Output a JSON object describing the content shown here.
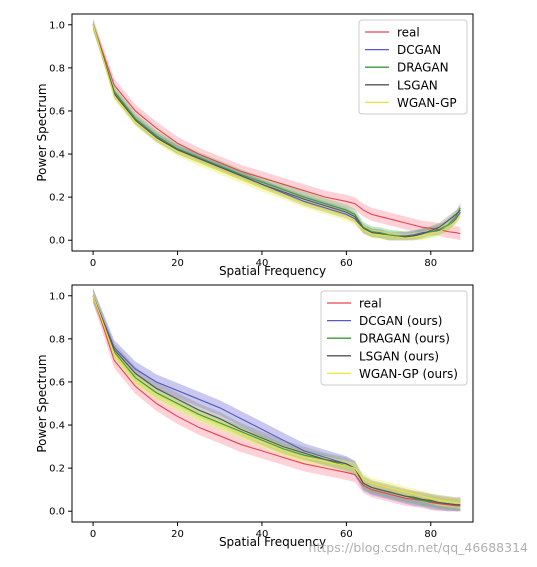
{
  "watermark": "https://blog.csdn.net/qq_46688314",
  "chart_data": [
    {
      "type": "line",
      "xlabel": "Spatial Frequency",
      "ylabel": "Power Spectrum",
      "xlim": [
        -5,
        90
      ],
      "ylim": [
        -0.05,
        1.05
      ],
      "xticks": [
        0,
        20,
        40,
        60,
        80
      ],
      "yticks": [
        0.0,
        0.2,
        0.4,
        0.6,
        0.8,
        1.0
      ],
      "legend_position": "top-right",
      "grid": false,
      "x": [
        0,
        5,
        10,
        15,
        20,
        25,
        30,
        35,
        40,
        45,
        50,
        55,
        60,
        62,
        64,
        66,
        68,
        70,
        72,
        74,
        76,
        78,
        80,
        82,
        84,
        86,
        87
      ],
      "series": [
        {
          "name": "real",
          "color": "#e8444c",
          "band_color": "#ff9aa8",
          "band": 0.03,
          "values": [
            1.0,
            0.72,
            0.6,
            0.52,
            0.45,
            0.4,
            0.36,
            0.32,
            0.29,
            0.26,
            0.23,
            0.2,
            0.18,
            0.17,
            0.14,
            0.12,
            0.11,
            0.1,
            0.09,
            0.08,
            0.07,
            0.06,
            0.055,
            0.05,
            0.04,
            0.035,
            0.03
          ]
        },
        {
          "name": "DCGAN",
          "color": "#5a58c2",
          "band_color": "#8888dd",
          "band": 0.02,
          "values": [
            1.0,
            0.68,
            0.56,
            0.48,
            0.42,
            0.38,
            0.34,
            0.3,
            0.26,
            0.22,
            0.18,
            0.15,
            0.12,
            0.1,
            0.05,
            0.035,
            0.03,
            0.02,
            0.02,
            0.02,
            0.025,
            0.035,
            0.04,
            0.045,
            0.06,
            0.1,
            0.13
          ]
        },
        {
          "name": "DRAGAN",
          "color": "#3c9a3c",
          "band_color": "#7acc7a",
          "band": 0.025,
          "values": [
            1.0,
            0.69,
            0.565,
            0.485,
            0.425,
            0.385,
            0.345,
            0.305,
            0.27,
            0.235,
            0.2,
            0.17,
            0.14,
            0.12,
            0.06,
            0.04,
            0.035,
            0.025,
            0.02,
            0.015,
            0.02,
            0.03,
            0.04,
            0.05,
            0.07,
            0.11,
            0.15
          ]
        },
        {
          "name": "LSGAN",
          "color": "#555555",
          "band_color": "#999999",
          "band": 0.02,
          "values": [
            1.0,
            0.68,
            0.555,
            0.475,
            0.42,
            0.38,
            0.34,
            0.3,
            0.26,
            0.225,
            0.19,
            0.16,
            0.13,
            0.11,
            0.055,
            0.035,
            0.03,
            0.02,
            0.015,
            0.015,
            0.02,
            0.03,
            0.045,
            0.06,
            0.09,
            0.12,
            0.14
          ]
        },
        {
          "name": "WGAN-GP",
          "color": "#e6e63c",
          "band_color": "#f2f270",
          "band": 0.02,
          "values": [
            1.0,
            0.67,
            0.55,
            0.47,
            0.41,
            0.365,
            0.325,
            0.285,
            0.245,
            0.21,
            0.17,
            0.14,
            0.11,
            0.09,
            0.05,
            0.03,
            0.025,
            0.02,
            0.015,
            0.01,
            0.015,
            0.02,
            0.03,
            0.04,
            0.06,
            0.09,
            0.12
          ]
        }
      ]
    },
    {
      "type": "line",
      "xlabel": "Spatial Frequency",
      "ylabel": "Power Spectrum",
      "xlim": [
        -5,
        90
      ],
      "ylim": [
        -0.05,
        1.05
      ],
      "xticks": [
        0,
        20,
        40,
        60,
        80
      ],
      "yticks": [
        0.0,
        0.2,
        0.4,
        0.6,
        0.8,
        1.0
      ],
      "legend_position": "top-right",
      "grid": false,
      "x": [
        0,
        5,
        10,
        15,
        20,
        25,
        30,
        35,
        40,
        45,
        50,
        55,
        60,
        62,
        64,
        66,
        68,
        70,
        72,
        74,
        76,
        78,
        80,
        82,
        84,
        86,
        87
      ],
      "series": [
        {
          "name": "real",
          "color": "#e8444c",
          "band_color": "#ff9aa8",
          "band": 0.035,
          "values": [
            1.0,
            0.7,
            0.58,
            0.5,
            0.44,
            0.39,
            0.35,
            0.31,
            0.28,
            0.25,
            0.22,
            0.2,
            0.18,
            0.17,
            0.12,
            0.1,
            0.09,
            0.08,
            0.07,
            0.06,
            0.055,
            0.05,
            0.04,
            0.035,
            0.03,
            0.025,
            0.025
          ]
        },
        {
          "name": "DCGAN (ours)",
          "color": "#5a58c2",
          "band_color": "#8888dd",
          "band": 0.035,
          "values": [
            1.0,
            0.76,
            0.66,
            0.6,
            0.56,
            0.52,
            0.48,
            0.43,
            0.38,
            0.33,
            0.28,
            0.25,
            0.22,
            0.2,
            0.13,
            0.11,
            0.1,
            0.09,
            0.08,
            0.07,
            0.06,
            0.055,
            0.045,
            0.04,
            0.035,
            0.03,
            0.03
          ]
        },
        {
          "name": "DRAGAN (ours)",
          "color": "#3c9a3c",
          "band_color": "#7acc7a",
          "band": 0.025,
          "values": [
            1.0,
            0.74,
            0.62,
            0.55,
            0.5,
            0.45,
            0.41,
            0.37,
            0.33,
            0.29,
            0.26,
            0.24,
            0.21,
            0.2,
            0.13,
            0.11,
            0.1,
            0.09,
            0.08,
            0.07,
            0.06,
            0.05,
            0.045,
            0.04,
            0.035,
            0.03,
            0.03
          ]
        },
        {
          "name": "LSGAN (ours)",
          "color": "#555555",
          "band_color": "#999999",
          "band": 0.03,
          "values": [
            1.0,
            0.75,
            0.64,
            0.57,
            0.52,
            0.47,
            0.43,
            0.38,
            0.34,
            0.3,
            0.27,
            0.24,
            0.22,
            0.2,
            0.13,
            0.11,
            0.1,
            0.09,
            0.08,
            0.07,
            0.065,
            0.055,
            0.05,
            0.04,
            0.035,
            0.03,
            0.03
          ]
        },
        {
          "name": "WGAN-GP (ours)",
          "color": "#e6e63c",
          "band_color": "#f2f270",
          "band": 0.025,
          "values": [
            1.0,
            0.73,
            0.61,
            0.54,
            0.49,
            0.44,
            0.4,
            0.36,
            0.32,
            0.28,
            0.25,
            0.23,
            0.21,
            0.2,
            0.15,
            0.13,
            0.12,
            0.11,
            0.1,
            0.09,
            0.08,
            0.07,
            0.06,
            0.05,
            0.045,
            0.04,
            0.035
          ]
        }
      ]
    }
  ]
}
